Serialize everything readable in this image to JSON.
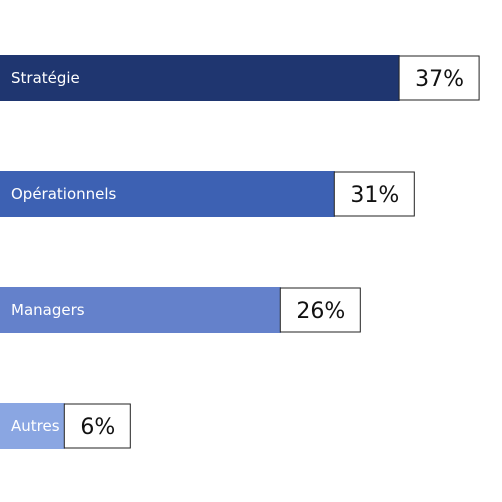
{
  "chart_data": {
    "type": "bar",
    "orientation": "horizontal",
    "categories": [
      "Stratégie",
      "Opérationnels",
      "Managers",
      "Autres"
    ],
    "values": [
      37,
      31,
      26,
      6
    ],
    "value_labels": [
      "37%",
      "31%",
      "26%",
      "6%"
    ],
    "unit": "%",
    "colors": [
      "#1f3670",
      "#3d61b3",
      "#6481cb",
      "#8aa6e2"
    ],
    "grid": false,
    "legend": "none"
  }
}
